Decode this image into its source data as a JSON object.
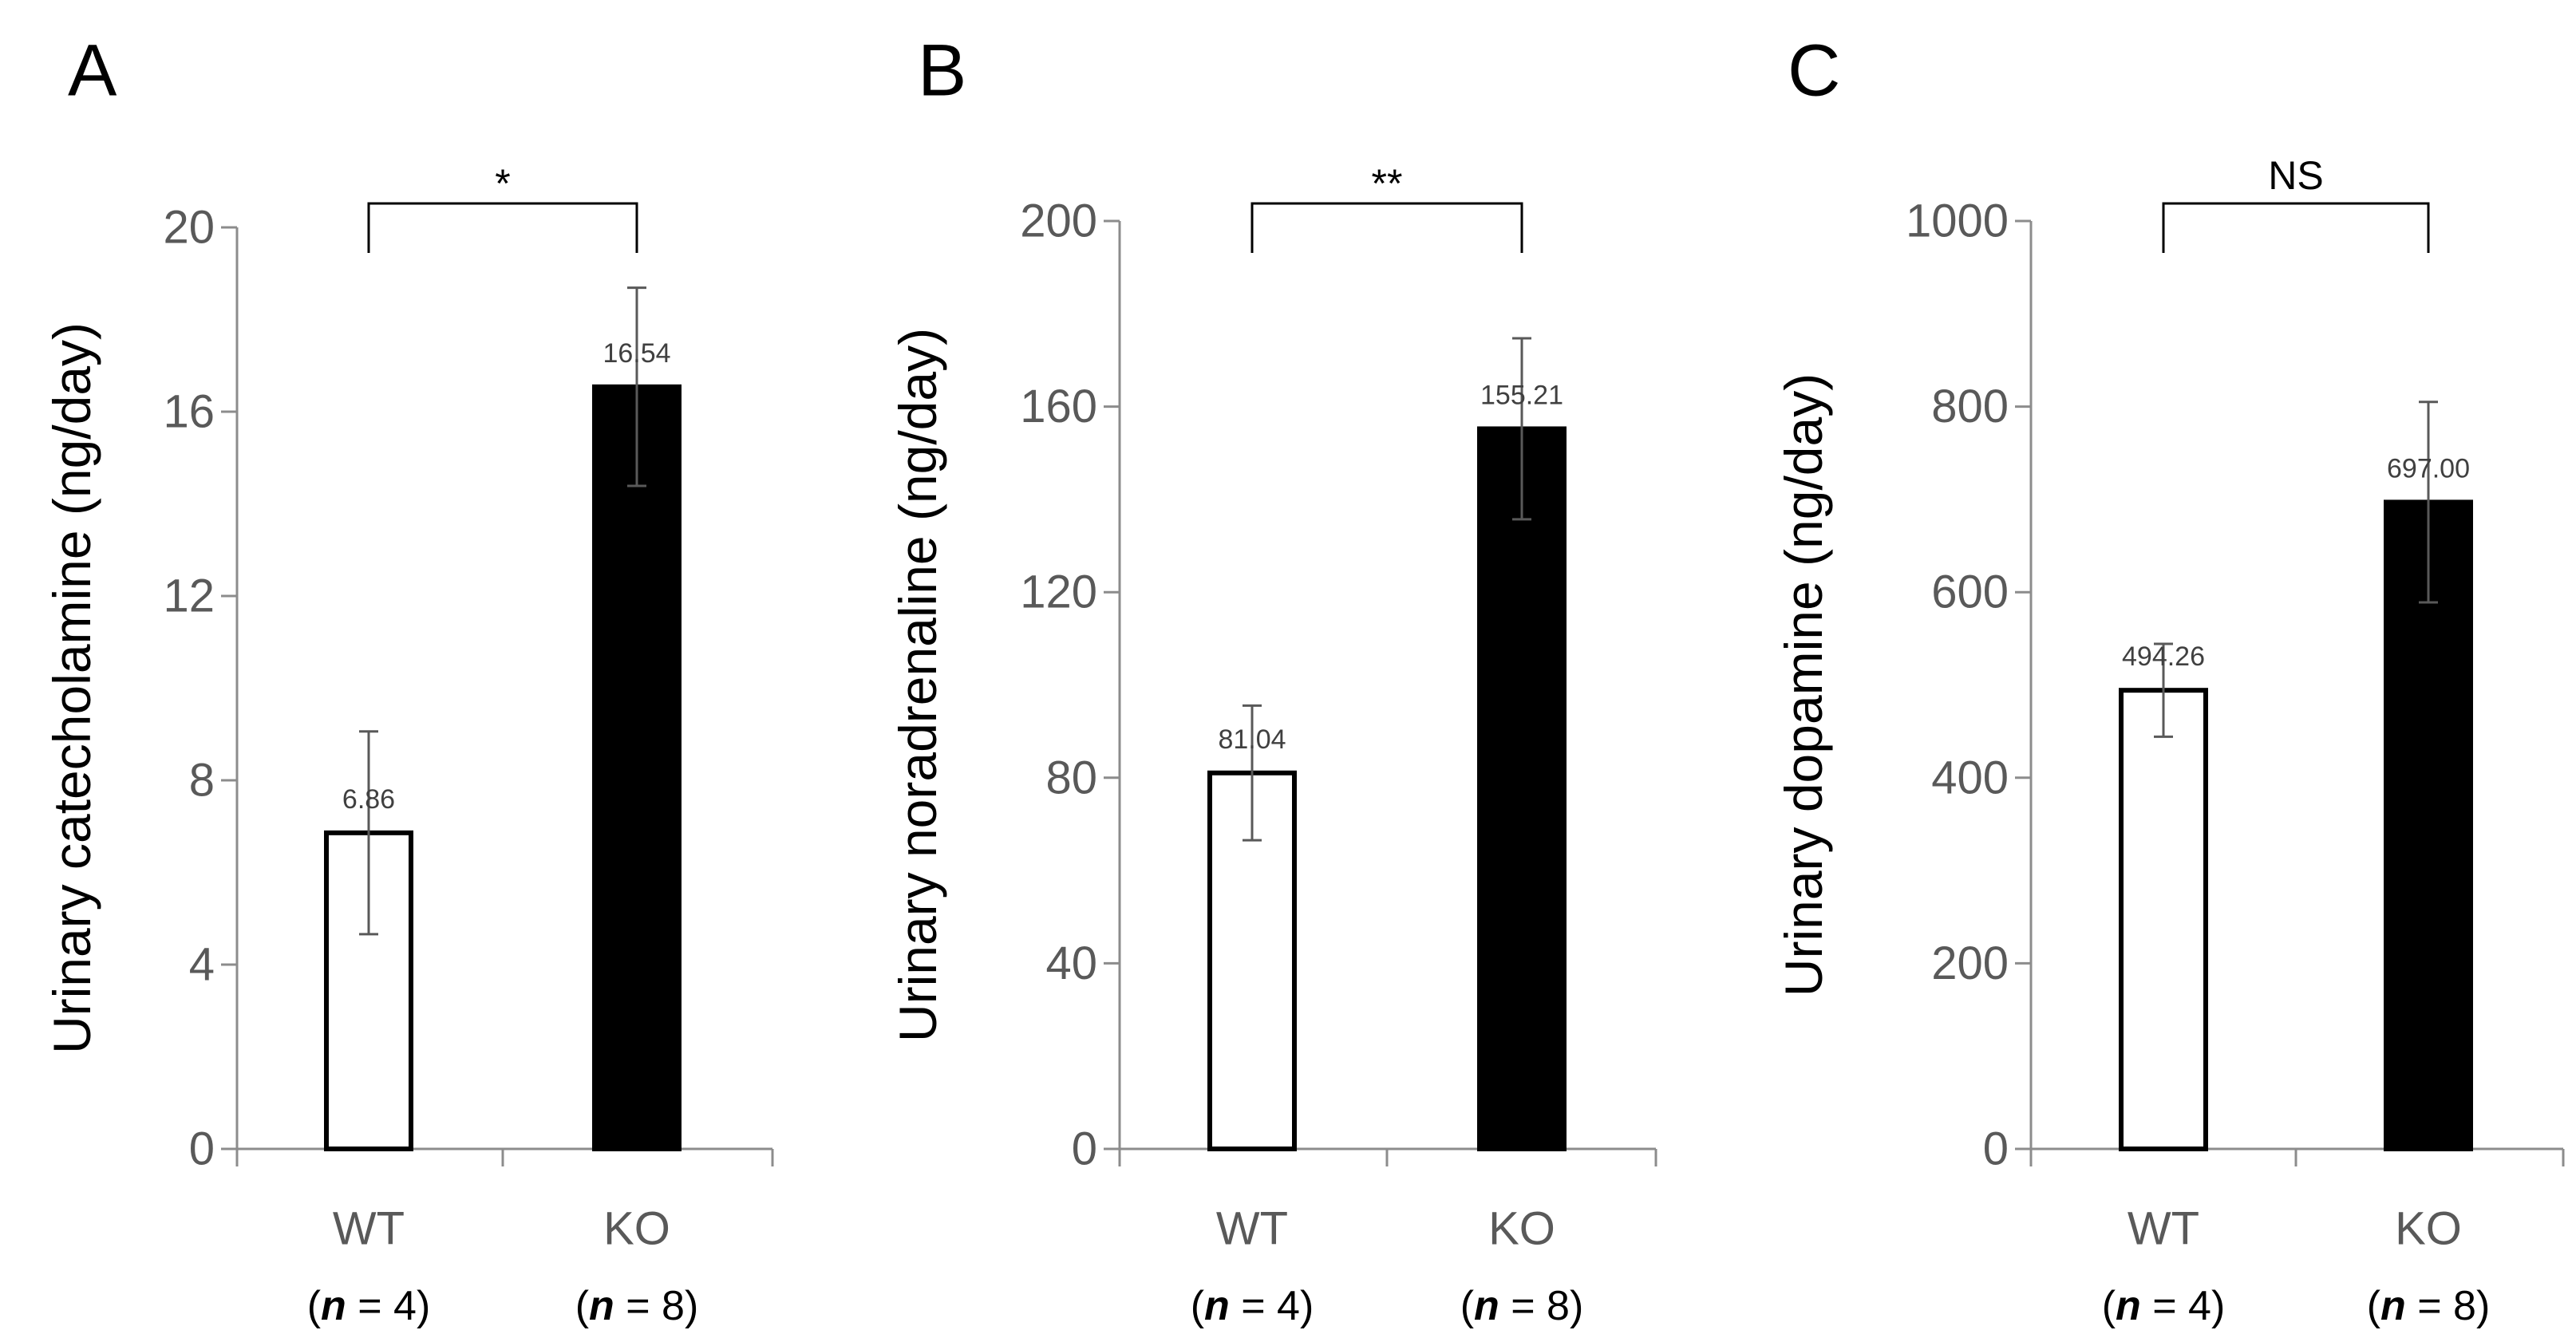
{
  "chart_data": [
    {
      "panel": "A",
      "type": "bar",
      "categories": [
        "WT",
        "KO"
      ],
      "n_labels": [
        {
          "prefix": "(",
          "var": "n",
          "rest": " = 4)"
        },
        {
          "prefix": "(",
          "var": "n",
          "rest": " = 8)"
        }
      ],
      "values": [
        6.86,
        16.54
      ],
      "value_labels": [
        "6.86",
        "16.54"
      ],
      "errors": [
        2.2,
        2.15
      ],
      "bar_fill": [
        "#ffffff",
        "#000000"
      ],
      "ylabel": "Urinary catecholamine (ng/day)",
      "ylim": [
        0,
        20
      ],
      "yticks": [
        0,
        4,
        8,
        12,
        16,
        20
      ],
      "significance": "*"
    },
    {
      "panel": "B",
      "type": "bar",
      "categories": [
        "WT",
        "KO"
      ],
      "n_labels": [
        {
          "prefix": "(",
          "var": "n",
          "rest": " = 4)"
        },
        {
          "prefix": "(",
          "var": "n",
          "rest": " = 8)"
        }
      ],
      "values": [
        81.04,
        155.21
      ],
      "value_labels": [
        "81.04",
        "155.21"
      ],
      "errors": [
        14.5,
        19.5
      ],
      "bar_fill": [
        "#ffffff",
        "#000000"
      ],
      "ylabel": "Urinary noradrenaline (ng/day)",
      "ylim": [
        0,
        200
      ],
      "yticks": [
        0,
        40,
        80,
        120,
        160,
        200
      ],
      "significance": "**"
    },
    {
      "panel": "C",
      "type": "bar",
      "categories": [
        "WT",
        "KO"
      ],
      "n_labels": [
        {
          "prefix": "(",
          "var": "n",
          "rest": " = 4)"
        },
        {
          "prefix": "(",
          "var": "n",
          "rest": " = 8)"
        }
      ],
      "values": [
        494.26,
        697.0
      ],
      "value_labels": [
        "494.26",
        "697.00"
      ],
      "errors": [
        50,
        108
      ],
      "bar_fill": [
        "#ffffff",
        "#000000"
      ],
      "ylabel": "Urinary dopamine (ng/day)",
      "ylim": [
        0,
        1000
      ],
      "yticks": [
        0,
        200,
        400,
        600,
        800,
        1000
      ],
      "significance": "NS"
    }
  ]
}
